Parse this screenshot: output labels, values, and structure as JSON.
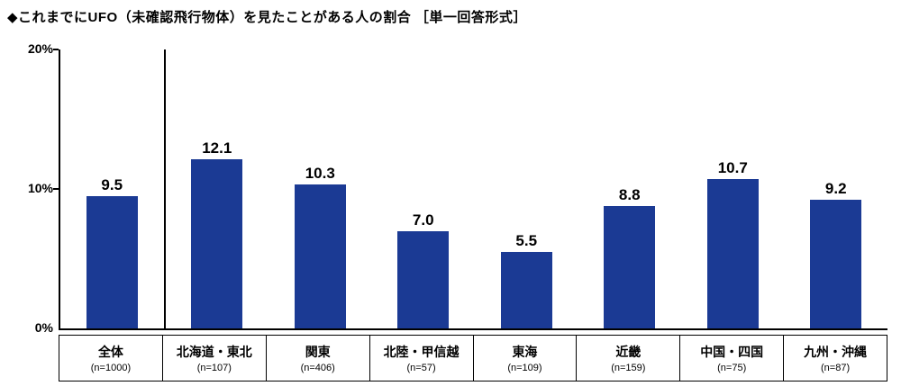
{
  "title": "◆これまでにUFO（未確認飛行物体）を見たことがある人の割合 ［単一回答形式］",
  "chart_data": {
    "type": "bar",
    "title": "これまでにUFO（未確認飛行物体）を見たことがある人の割合 ［単一回答形式］",
    "categories": [
      "全体",
      "北海道・東北",
      "関東",
      "北陸・甲信越",
      "東海",
      "近畿",
      "中国・四国",
      "九州・沖縄"
    ],
    "sample_sizes": [
      "(n=1000)",
      "(n=107)",
      "(n=406)",
      "(n=57)",
      "(n=109)",
      "(n=159)",
      "(n=75)",
      "(n=87)"
    ],
    "values": [
      9.5,
      12.1,
      10.3,
      7.0,
      5.5,
      8.8,
      10.7,
      9.2
    ],
    "value_labels": [
      "9.5",
      "12.1",
      "10.3",
      "7.0",
      "5.5",
      "8.8",
      "10.7",
      "9.2"
    ],
    "xlabel": "",
    "ylabel": "",
    "ylim": [
      0,
      20
    ],
    "yticks": [
      "20%",
      "10%",
      "0%"
    ],
    "grid": false,
    "legend": "none",
    "bar_color": "#1b3a94",
    "separator_after_first_category": true
  }
}
